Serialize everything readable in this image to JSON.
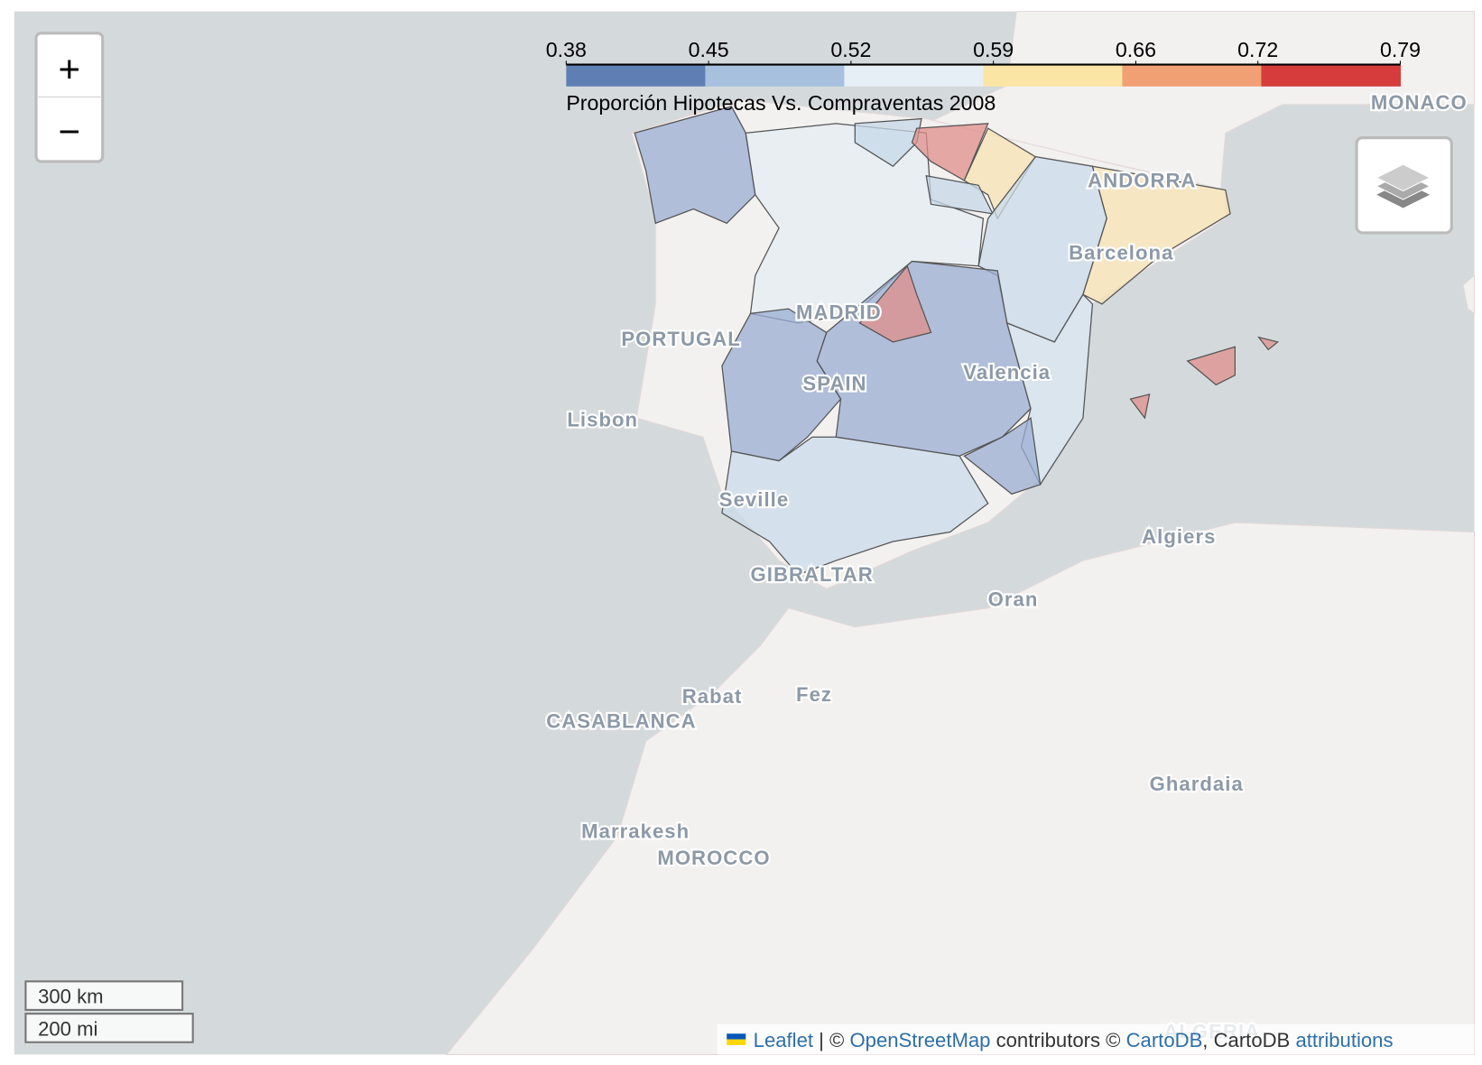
{
  "legend": {
    "title": "Proporción Hipotecas Vs. Compraventas 2008",
    "ticks": [
      0.38,
      0.45,
      0.52,
      0.59,
      0.66,
      0.72,
      0.79
    ],
    "colors": [
      "#5f7fb4",
      "#a7c0dd",
      "#e6eff5",
      "#fbe5a4",
      "#f0a073",
      "#d63c3c"
    ]
  },
  "zoom": {
    "in": "+",
    "out": "−"
  },
  "places": [
    "MONACO",
    "ANDORRA",
    "Barcelona",
    "MADRID",
    "PORTUGAL",
    "SPAIN",
    "Valencia",
    "Lisbon",
    "Seville",
    "GIBRALTAR",
    "Algiers",
    "Oran",
    "Rabat",
    "Fez",
    "CASABLANCA",
    "Marrakesh",
    "MOROCCO",
    "Ghardaia",
    "ALGERIA"
  ],
  "scale": {
    "metric": "300 km",
    "imperial": "200 mi"
  },
  "attribution": {
    "leaflet": "Leaflet",
    "sep": "| ©",
    "osm": "OpenStreetMap",
    "contrib": "contributors ©",
    "carto": "CartoDB",
    "carto2": ", CartoDB",
    "attr": "attributions"
  }
}
